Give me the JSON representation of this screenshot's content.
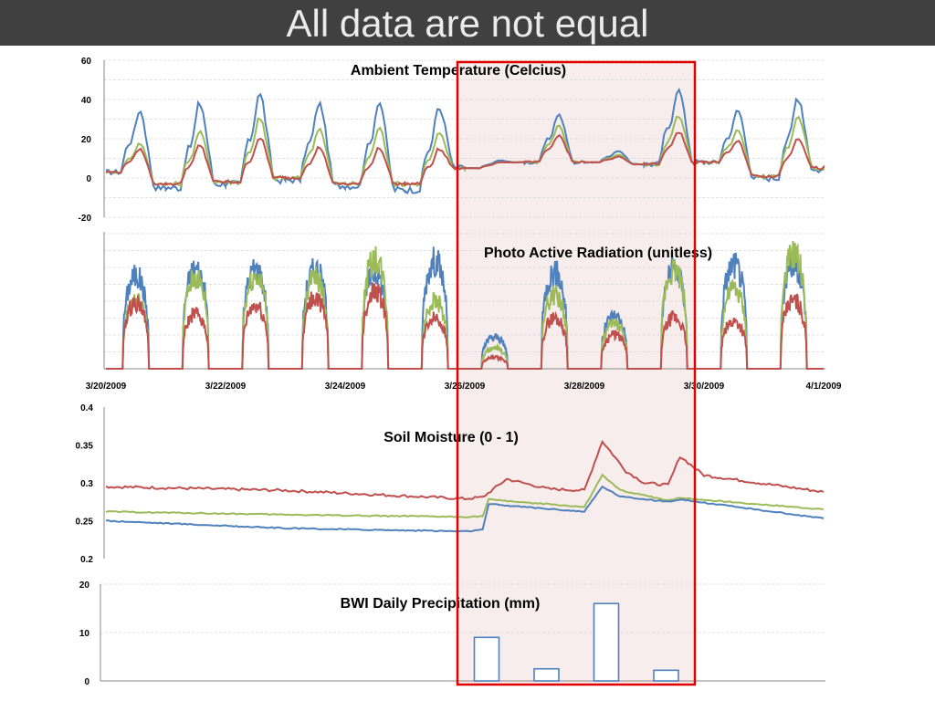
{
  "slide": {
    "title": "All data are not equal"
  },
  "colors": {
    "blue": "#4f81bd",
    "red": "#c0504d",
    "green": "#9bbb59",
    "highlight_border": "#e00000",
    "highlight_fill": "#f7eded"
  },
  "highlight": {
    "x_start": "2009-03-26",
    "x_end": "2009-03-30"
  },
  "chart_data": [
    {
      "type": "line",
      "title": "Ambient Temperature (Celcius)",
      "ylim": [
        -20,
        60
      ],
      "yticks": [
        "-20",
        "0",
        "20",
        "40",
        "60"
      ],
      "grid": true,
      "x": [
        "2009-03-20",
        "2009-03-21",
        "2009-03-22",
        "2009-03-23",
        "2009-03-24",
        "2009-03-25",
        "2009-03-26",
        "2009-03-27",
        "2009-03-28",
        "2009-03-29",
        "2009-03-30",
        "2009-03-31",
        "2009-04-01"
      ],
      "series": [
        {
          "color": "blue",
          "daily_min": [
            3,
            -5,
            -3,
            -1,
            -4,
            -6,
            5,
            8,
            8,
            7,
            8,
            0,
            4
          ],
          "daily_max": [
            35,
            39,
            44,
            39,
            40,
            37,
            9,
            33,
            14,
            46,
            35,
            42,
            5
          ]
        },
        {
          "color": "green",
          "daily_min": [
            3,
            -3,
            -2,
            0,
            -3,
            -3,
            5,
            8,
            8,
            7,
            8,
            1,
            5
          ],
          "daily_max": [
            18,
            24,
            31,
            26,
            26,
            23,
            8,
            27,
            12,
            32,
            25,
            32,
            6
          ]
        },
        {
          "color": "red",
          "daily_min": [
            3,
            -3,
            -2,
            0,
            -3,
            -3,
            5,
            8,
            8,
            7,
            8,
            1,
            5
          ],
          "daily_max": [
            15,
            17,
            21,
            16,
            16,
            15,
            8,
            22,
            11,
            24,
            19,
            21,
            5
          ]
        }
      ]
    },
    {
      "type": "line",
      "title": "Photo Active Radiation (unitless)",
      "grid": true,
      "x_tick_labels": [
        "3/20/2009",
        "3/22/2009",
        "3/24/2009",
        "3/26/2009",
        "3/28/2009",
        "3/30/2009",
        "4/1/2009"
      ],
      "series": [
        {
          "color": "blue",
          "daily_peak": [
            0.82,
            0.88,
            0.88,
            0.88,
            0.85,
            0.95,
            0.28,
            0.85,
            0.47,
            0.88,
            0.92,
            0.92
          ]
        },
        {
          "color": "green",
          "daily_peak": [
            0.6,
            0.8,
            0.82,
            0.8,
            0.97,
            0.6,
            0.18,
            0.65,
            0.4,
            0.88,
            0.7,
            1.0
          ]
        },
        {
          "color": "red",
          "daily_peak": [
            0.58,
            0.48,
            0.55,
            0.62,
            0.68,
            0.45,
            0.1,
            0.45,
            0.3,
            0.45,
            0.42,
            0.6
          ]
        }
      ]
    },
    {
      "type": "line",
      "title": "Soil Moisture (0 - 1)",
      "ylim": [
        0.2,
        0.4
      ],
      "yticks": [
        "0.2",
        "0.25",
        "0.3",
        "0.35",
        "0.4"
      ],
      "grid": false,
      "series": [
        {
          "color": "red",
          "points": [
            [
              "2009-03-20",
              0.295
            ],
            [
              "2009-03-23",
              0.29
            ],
            [
              "2009-03-26",
              0.279
            ],
            [
              "2009-03-26.3",
              0.281
            ],
            [
              "2009-03-26.7",
              0.305
            ],
            [
              "2009-03-27.4",
              0.292
            ],
            [
              "2009-03-28.0",
              0.29
            ],
            [
              "2009-03-28.3",
              0.355
            ],
            [
              "2009-03-28.7",
              0.315
            ],
            [
              "2009-03-29.0",
              0.3
            ],
            [
              "2009-03-29.4",
              0.297
            ],
            [
              "2009-03-29.6",
              0.335
            ],
            [
              "2009-03-30.0",
              0.31
            ],
            [
              "2009-04-01",
              0.288
            ]
          ]
        },
        {
          "color": "green",
          "points": [
            [
              "2009-03-20",
              0.262
            ],
            [
              "2009-03-23",
              0.258
            ],
            [
              "2009-03-26",
              0.255
            ],
            [
              "2009-03-26.3",
              0.256
            ],
            [
              "2009-03-26.4",
              0.278
            ],
            [
              "2009-03-28.0",
              0.268
            ],
            [
              "2009-03-28.3",
              0.31
            ],
            [
              "2009-03-28.6",
              0.29
            ],
            [
              "2009-03-29.4",
              0.277
            ],
            [
              "2009-03-29.6",
              0.28
            ],
            [
              "2009-04-01",
              0.265
            ]
          ]
        },
        {
          "color": "blue",
          "points": [
            [
              "2009-03-20",
              0.25
            ],
            [
              "2009-03-23",
              0.24
            ],
            [
              "2009-03-26",
              0.236
            ],
            [
              "2009-03-26.3",
              0.238
            ],
            [
              "2009-03-26.4",
              0.272
            ],
            [
              "2009-03-28.0",
              0.262
            ],
            [
              "2009-03-28.3",
              0.295
            ],
            [
              "2009-03-28.6",
              0.282
            ],
            [
              "2009-03-29.4",
              0.275
            ],
            [
              "2009-03-29.6",
              0.278
            ],
            [
              "2009-04-01",
              0.253
            ]
          ]
        }
      ]
    },
    {
      "type": "bar",
      "title": "BWI Daily Precipitation (mm)",
      "ylim": [
        0,
        20
      ],
      "yticks": [
        "0",
        "10",
        "20"
      ],
      "grid": true,
      "categories": [
        "2009-03-26",
        "2009-03-27",
        "2009-03-28",
        "2009-03-29"
      ],
      "values": [
        9,
        2.5,
        16,
        2.2
      ]
    }
  ]
}
